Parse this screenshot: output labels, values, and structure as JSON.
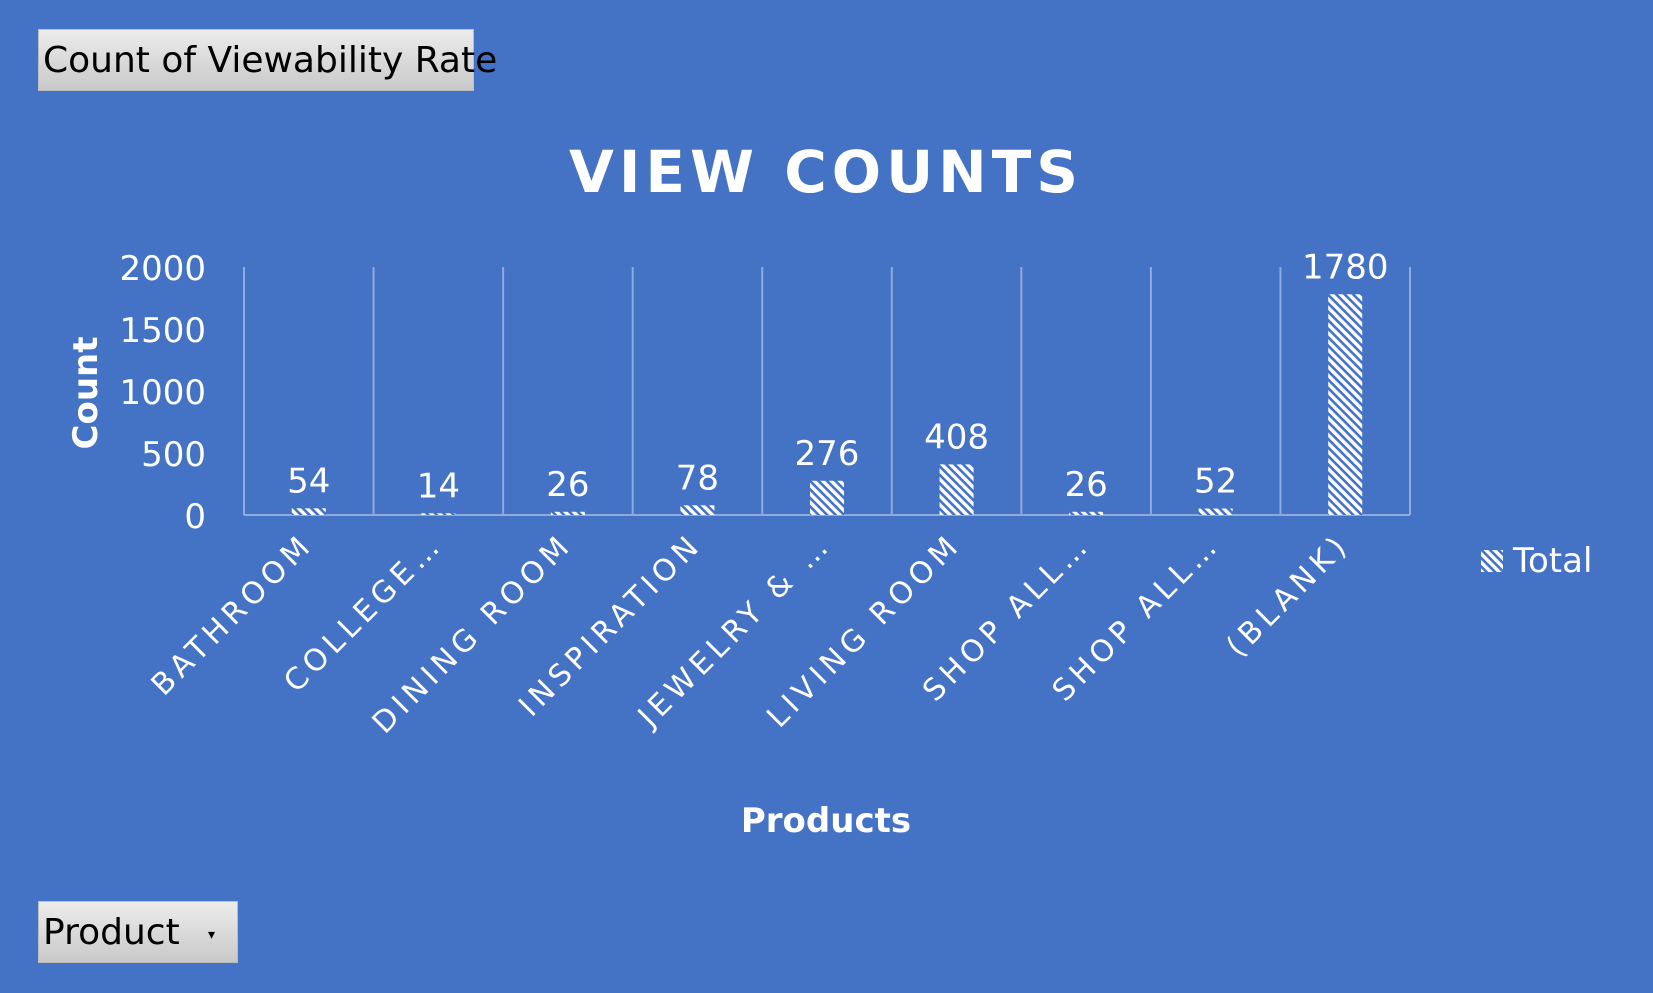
{
  "pivot": {
    "value_field_label": "Count of Viewability  Rate",
    "axis_field_label": "Product",
    "axis_field_icon": "dropdown-arrow-icon"
  },
  "colors": {
    "background": "#4472C4",
    "bar": "#ffffff",
    "gridline": "#8faadc",
    "text": "#ffffff"
  },
  "chart_data": {
    "type": "bar",
    "title": "VIEW COUNTS",
    "xlabel": "Products",
    "ylabel": "Count",
    "ylim": [
      0,
      2000
    ],
    "yticks": [
      "0",
      "500",
      "1000",
      "1500",
      "2000"
    ],
    "categories": [
      "BATHROOM",
      "COLLEGE…",
      "DINING ROOM",
      "INSPIRATION",
      "JEWELRY & …",
      "LIVING ROOM",
      "SHOP ALL…",
      "SHOP ALL…",
      "(BLANK)"
    ],
    "series": [
      {
        "name": "Total",
        "values": [
          54,
          14,
          26,
          78,
          276,
          408,
          26,
          52,
          1780
        ]
      }
    ],
    "data_labels": [
      "54",
      "14",
      "26",
      "78",
      "276",
      "408",
      "26",
      "52",
      "1780"
    ],
    "bar_pattern": "diagonal-hatch",
    "grid": "vertical",
    "legend": "right"
  }
}
